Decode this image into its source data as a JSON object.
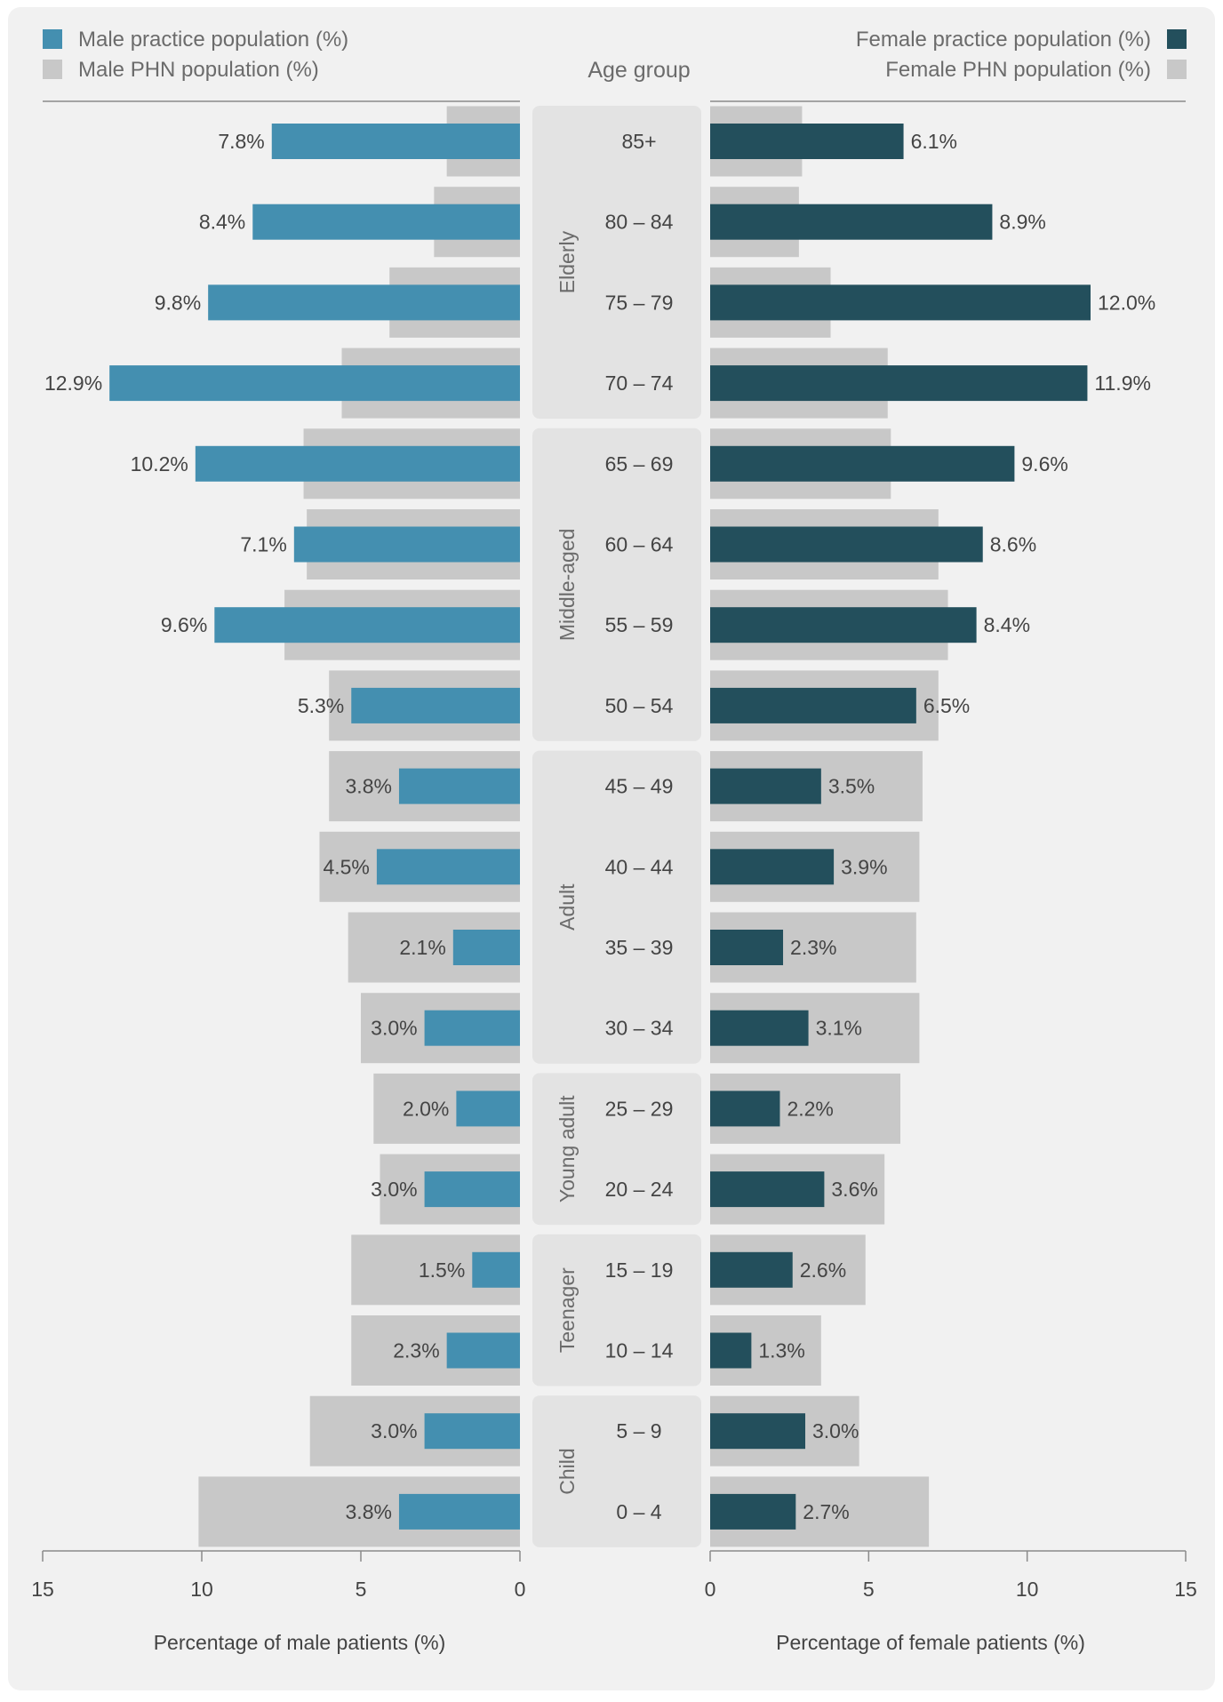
{
  "colors": {
    "card_background": "#f1f1f1",
    "male_practice": "#448fb0",
    "female_practice": "#234f5c",
    "phn_population": "#c8c8c8",
    "group_panel": "#e3e3e3",
    "text": "#444444",
    "muted_text": "#6b6b6b",
    "axis": "#8a8a8a"
  },
  "legend": {
    "male_practice": "Male practice population (%)",
    "male_phn": "Male PHN population (%)",
    "female_practice": "Female practice population (%)",
    "female_phn": "Female PHN population (%)",
    "age_group_header": "Age group"
  },
  "chart_data": {
    "type": "bar",
    "orientation": "horizontal",
    "layout": "population-pyramid",
    "categories": [
      "85+",
      "80 – 84",
      "75 – 79",
      "70 – 74",
      "65 – 69",
      "60 – 64",
      "55 – 59",
      "50 – 54",
      "45 – 49",
      "40 – 44",
      "35 – 39",
      "30 – 34",
      "25 – 29",
      "20 – 24",
      "15 – 19",
      "10 – 14",
      "5 – 9",
      "0 – 4"
    ],
    "groups": [
      {
        "label": "Elderly",
        "categories": [
          "85+",
          "80 – 84",
          "75 – 79",
          "70 – 74"
        ]
      },
      {
        "label": "Middle-aged",
        "categories": [
          "65 – 69",
          "60 – 64",
          "55 – 59",
          "50 – 54"
        ]
      },
      {
        "label": "Adult",
        "categories": [
          "45 – 49",
          "40 – 44",
          "35 – 39",
          "30 – 34"
        ]
      },
      {
        "label": "Young adult",
        "categories": [
          "25 – 29",
          "20 – 24"
        ]
      },
      {
        "label": "Teenager",
        "categories": [
          "15 – 19",
          "10 – 14"
        ]
      },
      {
        "label": "Child",
        "categories": [
          "5 – 9",
          "0 – 4"
        ]
      }
    ],
    "series": [
      {
        "name": "Male practice population (%)",
        "side": "left",
        "values": [
          7.8,
          8.4,
          9.8,
          12.9,
          10.2,
          7.1,
          9.6,
          5.3,
          3.8,
          4.5,
          2.1,
          3.0,
          2.0,
          3.0,
          1.5,
          2.3,
          3.0,
          3.8
        ]
      },
      {
        "name": "Male PHN population (%)",
        "side": "left",
        "values": [
          2.3,
          2.7,
          4.1,
          5.6,
          6.8,
          6.7,
          7.4,
          6.0,
          6.0,
          6.3,
          5.4,
          5.0,
          4.6,
          4.4,
          5.3,
          5.3,
          6.6,
          10.1
        ]
      },
      {
        "name": "Female practice population (%)",
        "side": "right",
        "values": [
          6.1,
          8.9,
          12.0,
          11.9,
          9.6,
          8.6,
          8.4,
          6.5,
          3.5,
          3.9,
          2.3,
          3.1,
          2.2,
          3.6,
          2.6,
          1.3,
          3.0,
          2.7
        ]
      },
      {
        "name": "Female PHN population (%)",
        "side": "right",
        "values": [
          2.9,
          2.8,
          3.8,
          5.6,
          5.7,
          7.2,
          7.5,
          7.2,
          6.7,
          6.6,
          6.5,
          6.6,
          6.0,
          5.5,
          4.9,
          3.5,
          4.7,
          6.9
        ]
      }
    ],
    "data_labels": {
      "male": [
        "7.8%",
        "8.4%",
        "9.8%",
        "12.9%",
        "10.2%",
        "7.1%",
        "9.6%",
        "5.3%",
        "3.8%",
        "4.5%",
        "2.1%",
        "3.0%",
        "2.0%",
        "3.0%",
        "1.5%",
        "2.3%",
        "3.0%",
        "3.8%"
      ],
      "female": [
        "6.1%",
        "8.9%",
        "12.0%",
        "11.9%",
        "9.6%",
        "8.6%",
        "8.4%",
        "6.5%",
        "3.5%",
        "3.9%",
        "2.3%",
        "3.1%",
        "2.2%",
        "3.6%",
        "2.6%",
        "1.3%",
        "3.0%",
        "2.7%"
      ]
    },
    "xlim": [
      0,
      15
    ],
    "xticks": [
      0,
      5,
      10,
      15
    ],
    "xticklabels": [
      "0",
      "5",
      "10",
      "15"
    ],
    "xlabel_left": "Percentage of male patients (%)",
    "xlabel_right": "Percentage of female patients (%)",
    "legend_position": "top"
  }
}
